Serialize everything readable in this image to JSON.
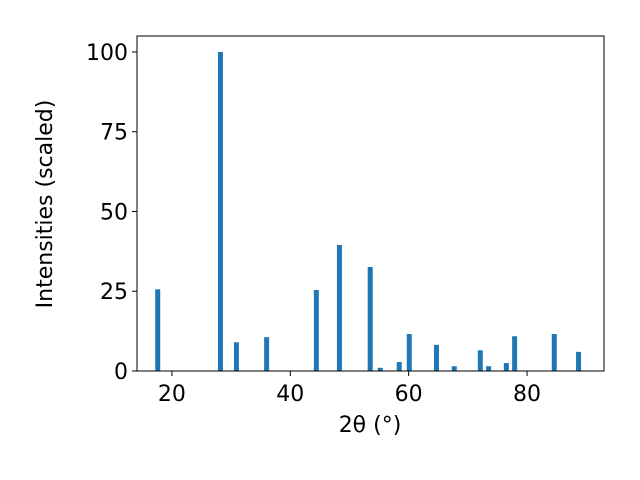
{
  "chart_data": {
    "type": "bar",
    "x_label": "2θ (°)",
    "y_label": "Intensities (scaled)",
    "x": [
      17.6,
      28.2,
      30.9,
      36.0,
      44.4,
      48.3,
      53.5,
      55.2,
      58.4,
      60.1,
      64.7,
      67.7,
      72.1,
      73.5,
      76.5,
      77.9,
      84.6,
      88.7
    ],
    "values": [
      25.6,
      100,
      9,
      10.6,
      25.4,
      39.5,
      32.6,
      1,
      2.8,
      11.6,
      8.2,
      1.5,
      6.5,
      1.5,
      2.5,
      10.9,
      11.6,
      6
    ],
    "color": "#1f77b4",
    "xlim": [
      14.1,
      93.0
    ],
    "xticks": [
      20,
      40,
      60,
      80
    ],
    "ylim": [
      0,
      105
    ],
    "yticks": [
      0,
      25,
      50,
      75,
      100
    ]
  }
}
